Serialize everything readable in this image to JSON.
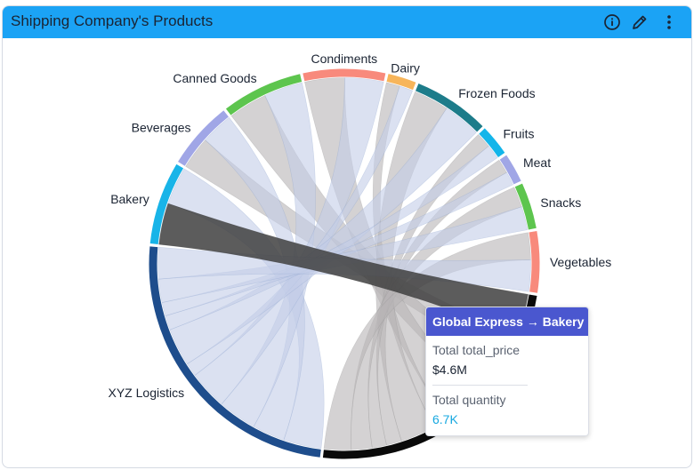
{
  "widget": {
    "title": "Shipping Company's Products"
  },
  "icons": {
    "info": "info-icon",
    "edit": "pencil-icon",
    "menu": "kebab-menu-icon"
  },
  "tooltip": {
    "title": "Global Express → Bakery",
    "metric1_label": "Total total_price",
    "metric1_value": "$4.6M",
    "metric2_label": "Total quantity",
    "metric2_value": "6.7K",
    "accent_color": "#17a8e0"
  },
  "chart_data": {
    "type": "chord",
    "title": "Shipping Company's Products",
    "groups": [
      {
        "name": "Bakery",
        "color": "#18b4e8"
      },
      {
        "name": "Beverages",
        "color": "#a0a6e6"
      },
      {
        "name": "Canned Goods",
        "color": "#5dc54e"
      },
      {
        "name": "Condiments",
        "color": "#f88a7c"
      },
      {
        "name": "Dairy",
        "color": "#f7b55a"
      },
      {
        "name": "Frozen Foods",
        "color": "#1d7c8a"
      },
      {
        "name": "Fruits",
        "color": "#13b5ea"
      },
      {
        "name": "Meat",
        "color": "#a0a6e6"
      },
      {
        "name": "Snacks",
        "color": "#5dc54e"
      },
      {
        "name": "Vegetables",
        "color": "#f88a7c"
      },
      {
        "name": "Global Express",
        "color": "#0a0a0a",
        "label_hidden": true
      },
      {
        "name": "XYZ Logistics",
        "color": "#1e4d8c"
      }
    ],
    "sources": [
      "Global Express",
      "XYZ Logistics"
    ],
    "flows_total_price_millions": {
      "Global Express": {
        "Bakery": 4.6,
        "Beverages": 3.6,
        "Canned Goods": 4.3,
        "Condiments": 4.4,
        "Dairy": 1.5,
        "Frozen Foods": 3.9,
        "Fruits": 1.7,
        "Meat": 1.6,
        "Snacks": 2.3,
        "Vegetables": 3.0
      },
      "XYZ Logistics": {
        "Bakery": 4.2,
        "Beverages": 3.6,
        "Canned Goods": 4.3,
        "Condiments": 4.3,
        "Dairy": 1.5,
        "Frozen Foods": 4.2,
        "Fruits": 1.6,
        "Meat": 1.5,
        "Snacks": 2.6,
        "Vegetables": 3.5
      }
    },
    "highlighted_flow": {
      "source": "Global Express",
      "target": "Bakery"
    },
    "ribbon_colors": {
      "Global Express": "#b7b4b6",
      "XYZ Logistics": "#c3cde8",
      "highlight": "#404040"
    }
  }
}
